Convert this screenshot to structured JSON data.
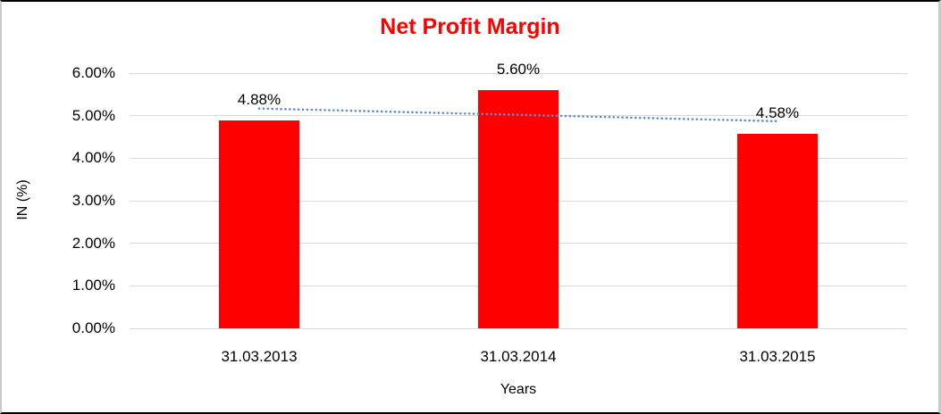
{
  "chart_data": {
    "type": "bar",
    "title": "Net Profit Margin",
    "title_color": "#ff0000",
    "categories": [
      "31.03.2013",
      "31.03.2014",
      "31.03.2015"
    ],
    "values": [
      4.88,
      5.6,
      4.58
    ],
    "data_labels": [
      "4.88%",
      "5.60%",
      "4.58%"
    ],
    "xlabel": "Years",
    "ylabel": "IN (%)",
    "ylim": [
      0,
      6
    ],
    "y_tick_values": [
      0,
      1,
      2,
      3,
      4,
      5,
      6
    ],
    "y_tick_labels": [
      "0.00%",
      "1.00%",
      "2.00%",
      "3.00%",
      "4.00%",
      "5.00%",
      "6.00%"
    ],
    "grid": true,
    "legend": "none",
    "bar_color": "#ff0000",
    "gridline_color": "#d9d9d9",
    "trendline": {
      "type": "linear",
      "style": "dotted",
      "color": "#5b8fd0",
      "start_value": 5.17,
      "end_value": 4.87
    }
  }
}
